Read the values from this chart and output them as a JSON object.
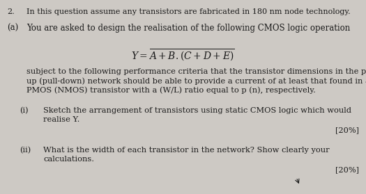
{
  "bg_color": "#cdc9c4",
  "text_color": "#1a1a1a",
  "question_number": "2.",
  "header_line": "In this question assume any transistors are fabricated in 180 nm node technology.",
  "part_a_label": "(a)",
  "part_a_intro": "You are asked to design the realisation of the following CMOS logic operation",
  "subject_text_line1": "subject to the following performance criteria that the transistor dimensions in the pull-",
  "subject_text_line2": "up (pull-down) network should be able to provide a current of at least that found in a",
  "subject_text_line3": "PMOS (NMOS) transistor with a (W/L) ratio equal to p (n), respectively.",
  "part_i_label": "(i)",
  "part_i_text_line1": "Sketch the arrangement of transistors using static CMOS logic which would",
  "part_i_text_line2": "realise Y.",
  "part_i_marks": "[20%]",
  "part_ii_label": "(ii)",
  "part_ii_text_line1": "What is the width of each transistor in the network? Show clearly your",
  "part_ii_text_line2": "calculations.",
  "part_ii_marks": "[20%]",
  "figsize": [
    5.25,
    2.79
  ],
  "dpi": 100
}
